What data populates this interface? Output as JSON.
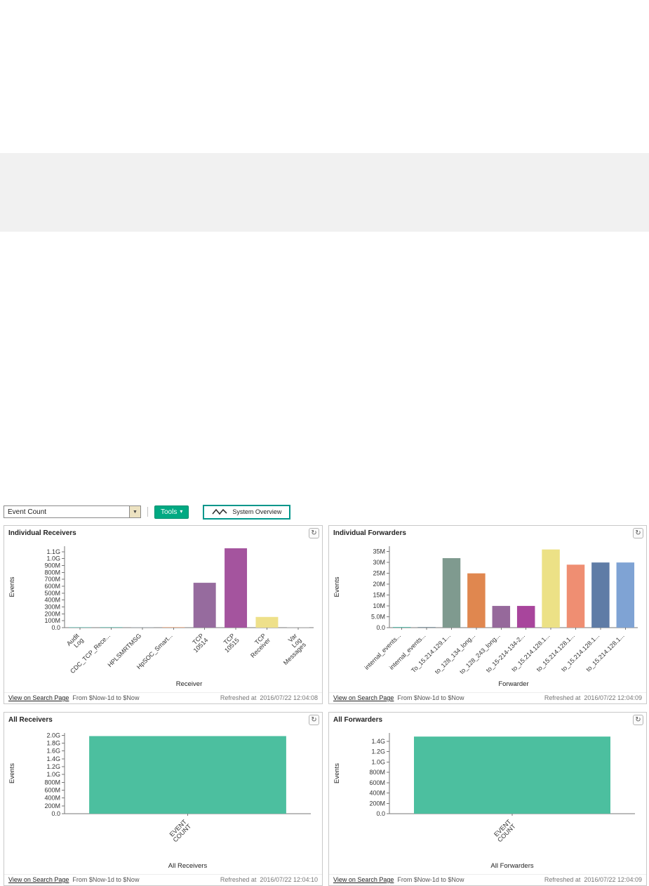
{
  "icons": {
    "dropdown_arrow": "▼",
    "caret": "▾",
    "refresh": "↻"
  },
  "toolbar": {
    "dropdown_value": "Event Count",
    "tools_label": "Tools",
    "system_overview_label": "System Overview"
  },
  "panels": [
    {
      "title": "Individual Receivers",
      "link_label": "View on Search Page",
      "range": "From $Now-1d to $Now",
      "refreshed_label": "Refreshed at",
      "refreshed_time": "2016/07/22 12:04:08"
    },
    {
      "title": "Individual Forwarders",
      "link_label": "View on Search Page",
      "range": "From $Now-1d to $Now",
      "refreshed_label": "Refreshed at",
      "refreshed_time": "2016/07/22 12:04:09"
    },
    {
      "title": "All Receivers",
      "link_label": "View on Search Page",
      "range": "From $Now-1d to $Now",
      "refreshed_label": "Refreshed at",
      "refreshed_time": "2016/07/22 12:04:10"
    },
    {
      "title": "All Forwarders",
      "link_label": "View on Search Page",
      "range": "From $Now-1d to $Now",
      "refreshed_label": "Refreshed at",
      "refreshed_time": "2016/07/22 12:04:09"
    }
  ],
  "chart_data": [
    {
      "type": "bar",
      "title": "Individual Receivers",
      "ylabel": "Events",
      "xlabel": "Receiver",
      "categories": [
        "Audit\nLog",
        "CDC_TCP_Rece...",
        "HPLSMRTMSG",
        "HpSOC_Smart...",
        "TCP\n10514",
        "TCP\n10515",
        "TCP\nReceiver",
        "Var\nLog\nMessages"
      ],
      "values": [
        4000000,
        7000000,
        1500000,
        6000000,
        650000000,
        1150000000,
        155000000,
        2000000
      ],
      "colors": [
        "#52b8a8",
        "#52b8a8",
        "#9aa5ab",
        "#e58e5a",
        "#966b9e",
        "#a4549e",
        "#eee08a",
        "#b0b0b0"
      ],
      "ylim": [
        0,
        1180000000
      ],
      "ytick_values": [
        0,
        100000000,
        200000000,
        300000000,
        400000000,
        500000000,
        600000000,
        700000000,
        800000000,
        900000000,
        1000000000,
        1100000000
      ],
      "ytick_labels": [
        "0.0",
        "100M",
        "200M",
        "300M",
        "400M",
        "500M",
        "600M",
        "700M",
        "800M",
        "900M",
        "1.0G",
        "1.1G"
      ],
      "grid": false,
      "legend": false
    },
    {
      "type": "bar",
      "title": "Individual Forwarders",
      "ylabel": "Events",
      "xlabel": "Forwarder",
      "categories": [
        "internal_events...",
        "internal_events...",
        "To_15.214.129.1...",
        "to_128_134_long...",
        "to_128_243_long...",
        "to_15-214-134-2...",
        "to_15.214.128.1...",
        "to_15.214.128.1...",
        "to_15.214.128.1...",
        "to_15.214.128.1..."
      ],
      "values": [
        300000,
        300000,
        32000000,
        25000000,
        10000000,
        10000000,
        36000000,
        29000000,
        30000000,
        30000000
      ],
      "colors": [
        "#52b8a8",
        "#7f94a0",
        "#7f9a8f",
        "#e0874f",
        "#96699b",
        "#a8459c",
        "#ece186",
        "#ef8e72",
        "#5f7ca6",
        "#7fa3d4"
      ],
      "ylim": [
        0,
        37500000
      ],
      "ytick_values": [
        0,
        5000000,
        10000000,
        15000000,
        20000000,
        25000000,
        30000000,
        35000000
      ],
      "ytick_labels": [
        "0.0",
        "5.0M",
        "10M",
        "15M",
        "20M",
        "25M",
        "30M",
        "35M"
      ],
      "grid": false,
      "legend": false
    },
    {
      "type": "bar",
      "title": "All Receivers",
      "ylabel": "Events",
      "xlabel": "All Receivers",
      "categories": [
        "EVENT\nCOUNT"
      ],
      "values": [
        1980000000
      ],
      "colors": [
        "#4cbf9f"
      ],
      "ylim": [
        0,
        2060000000
      ],
      "ytick_values": [
        0,
        200000000,
        400000000,
        600000000,
        800000000,
        1000000000,
        1200000000,
        1400000000,
        1600000000,
        1800000000,
        2000000000
      ],
      "ytick_labels": [
        "0.0",
        "200M",
        "400M",
        "600M",
        "800M",
        "1.0G",
        "1.2G",
        "1.4G",
        "1.6G",
        "1.8G",
        "2.0G"
      ],
      "grid": false,
      "legend": false
    },
    {
      "type": "bar",
      "title": "All Forwarders",
      "ylabel": "Events",
      "xlabel": "All Forwarders",
      "categories": [
        "EVENT\nCOUNT"
      ],
      "values": [
        1490000000
      ],
      "colors": [
        "#4cbf9f"
      ],
      "ylim": [
        0,
        1560000000
      ],
      "ytick_values": [
        0,
        200000000,
        400000000,
        600000000,
        800000000,
        1000000000,
        1200000000,
        1400000000
      ],
      "ytick_labels": [
        "0.0",
        "200M",
        "400M",
        "600M",
        "800M",
        "1.0G",
        "1.2G",
        "1.4G"
      ],
      "grid": false,
      "legend": false
    }
  ]
}
